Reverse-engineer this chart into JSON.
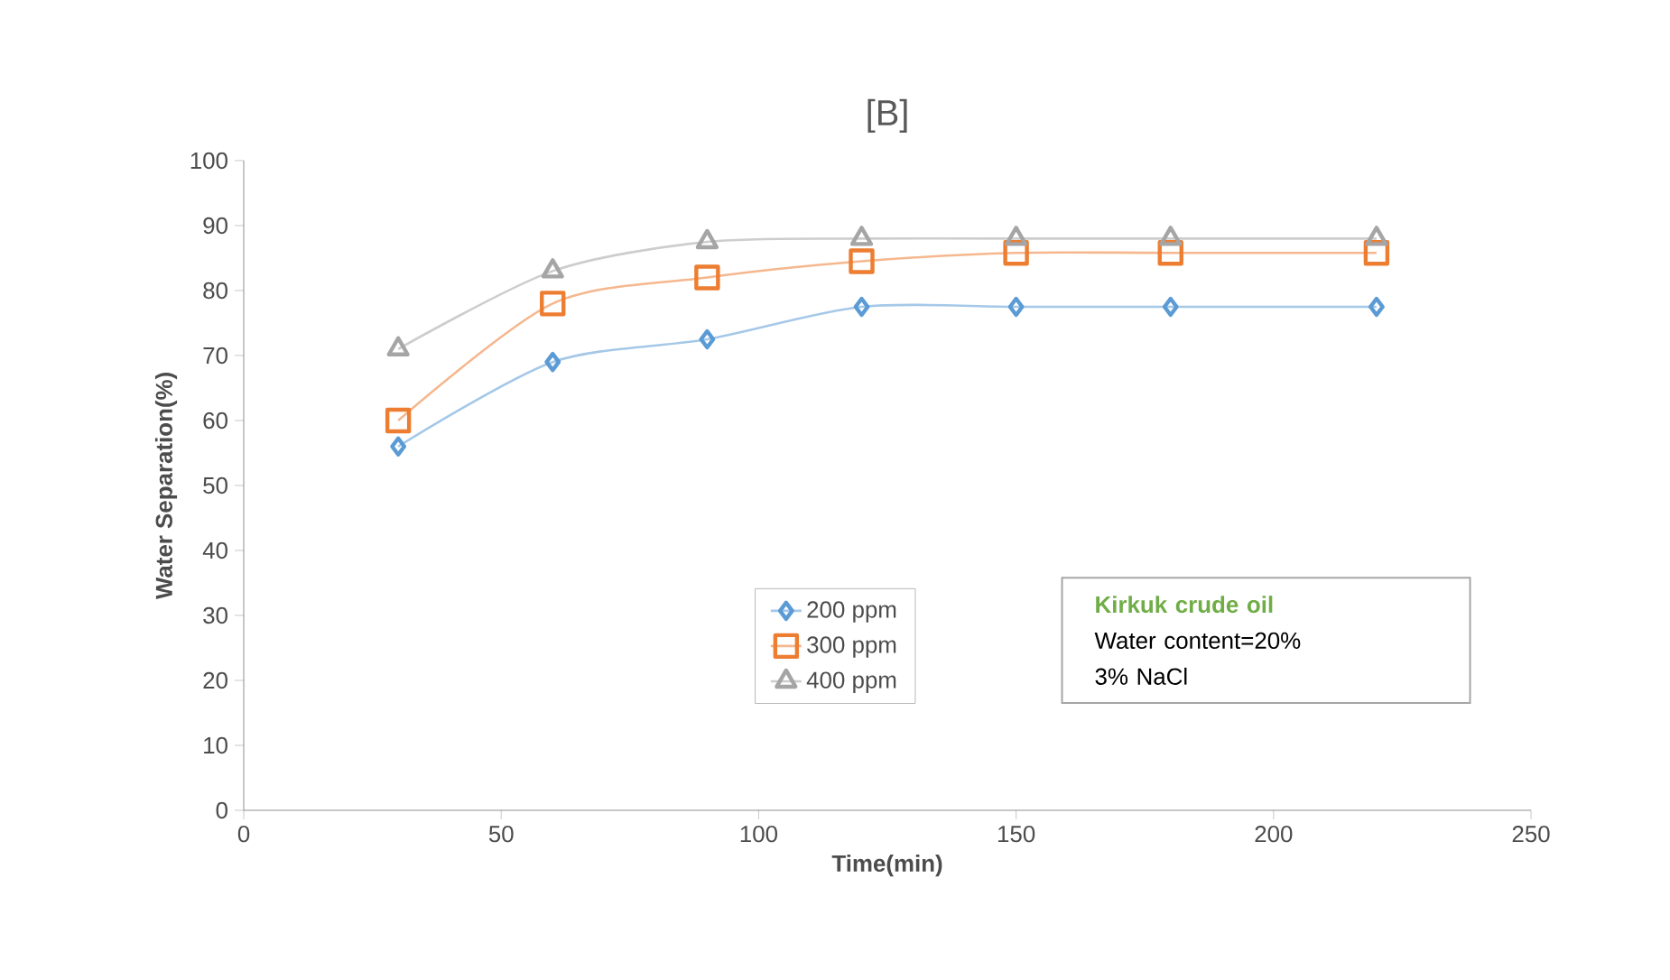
{
  "chart_data": {
    "type": "line",
    "title": "[B]",
    "xlabel": "Time(min)",
    "ylabel": "Water Separation(%)",
    "x": [
      30,
      60,
      90,
      120,
      150,
      180,
      220
    ],
    "series": [
      {
        "name": "200 ppm",
        "color": "#5b9bd5",
        "marker": "diamond",
        "values": [
          56,
          69,
          72.5,
          77.5,
          77.5,
          77.5,
          77.5
        ]
      },
      {
        "name": "300 ppm",
        "color": "#ed7d31",
        "marker": "square",
        "values": [
          60,
          78,
          82,
          84.5,
          85.8,
          85.8,
          85.8
        ]
      },
      {
        "name": "400 ppm",
        "color": "#a5a5a5",
        "marker": "triangle",
        "values": [
          71,
          83,
          87.5,
          88,
          88,
          88,
          88
        ]
      }
    ],
    "xlim": [
      0,
      250
    ],
    "xticks": [
      0,
      50,
      100,
      150,
      200,
      250
    ],
    "ylim": [
      0,
      100
    ],
    "yticks": [
      0,
      10,
      20,
      30,
      40,
      50,
      60,
      70,
      80,
      90,
      100
    ],
    "grid": false,
    "legend": "bottom",
    "annotations": [
      "Kirkuk crude oil",
      "Water content=20%",
      "3% NaCl"
    ]
  }
}
